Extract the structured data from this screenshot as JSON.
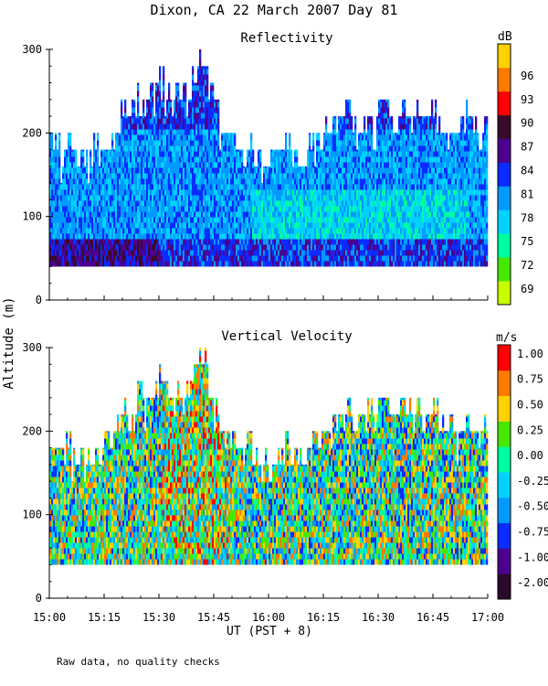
{
  "figure": {
    "title": "Dixon, CA 22 March 2007  Day  81",
    "ylabel": "Altitude (m)",
    "xlabel": "UT  (PST + 8)",
    "footnote": "Raw data, no quality checks"
  },
  "chart_data": [
    {
      "type": "heatmap",
      "title": "Reflectivity",
      "xlabel": "UT  (PST + 8)",
      "ylabel": "Altitude (m)",
      "x_ticks": [
        "15:00",
        "15:15",
        "15:30",
        "15:45",
        "16:00",
        "16:15",
        "16:30",
        "16:45",
        "17:00"
      ],
      "y_ticks": [
        0,
        100,
        200,
        300
      ],
      "xlim": [
        "15:00",
        "17:00"
      ],
      "ylim": [
        0,
        300
      ],
      "colorbar": {
        "unit": "dB",
        "ticks": [
          69,
          72,
          75,
          78,
          81,
          84,
          87,
          90,
          93,
          96
        ],
        "colors": [
          "#c8ff00",
          "#46e800",
          "#00ffa0",
          "#00d2ff",
          "#009aff",
          "#0a2cff",
          "#4b0090",
          "#3a0a2a",
          "#ff0000",
          "#ff7a00",
          "#ffd200"
        ]
      },
      "data_bottom_m": 40,
      "cloud_top_m": [
        200,
        200,
        180,
        200,
        180,
        180,
        180,
        180,
        200,
        180,
        200,
        200,
        220,
        240,
        220,
        240,
        260,
        240,
        260,
        260,
        280,
        260,
        240,
        260,
        260,
        260,
        280,
        300,
        300,
        260,
        240,
        200,
        200,
        200,
        180,
        180,
        200,
        180,
        180,
        180,
        180,
        180,
        180,
        200,
        180,
        180,
        180,
        200,
        200,
        200,
        220,
        220,
        220,
        220,
        240,
        220,
        220,
        220,
        240,
        220,
        240,
        240,
        220,
        220,
        240,
        240,
        220,
        240,
        220,
        240,
        240,
        220,
        200,
        220,
        200,
        220,
        240,
        220,
        200,
        220
      ],
      "dominant_profile_db": [
        {
          "below_m": 70,
          "value": 84
        },
        {
          "below_m": 130,
          "value": 78
        },
        {
          "below_m": 200,
          "value": 80
        },
        {
          "below_m": 300,
          "value": 83
        }
      ],
      "grid": false
    },
    {
      "type": "heatmap",
      "title": "Vertical Velocity",
      "xlabel": "UT  (PST + 8)",
      "ylabel": "Altitude (m)",
      "x_ticks": [
        "15:00",
        "15:15",
        "15:30",
        "15:45",
        "16:00",
        "16:15",
        "16:30",
        "16:45",
        "17:00"
      ],
      "y_ticks": [
        0,
        100,
        200,
        300
      ],
      "xlim": [
        "15:00",
        "17:00"
      ],
      "ylim": [
        0,
        300
      ],
      "colorbar": {
        "unit": "m/s",
        "ticks": [
          "-2.00",
          "-1.00",
          "-0.75",
          "-0.50",
          "-0.25",
          "0.00",
          "0.25",
          "0.50",
          "0.75",
          "1.00"
        ],
        "colors": [
          "#2a0a2a",
          "#4b0090",
          "#0a2cff",
          "#009aff",
          "#00d2ff",
          "#00ffa0",
          "#46e800",
          "#ffd200",
          "#ff7a00",
          "#ff0000"
        ]
      },
      "data_bottom_m": 40,
      "cloud_top_m": [
        200,
        200,
        180,
        200,
        180,
        180,
        180,
        180,
        200,
        180,
        200,
        200,
        220,
        240,
        220,
        240,
        260,
        240,
        260,
        260,
        280,
        260,
        240,
        260,
        260,
        260,
        280,
        300,
        300,
        260,
        240,
        200,
        200,
        200,
        180,
        180,
        200,
        180,
        180,
        180,
        180,
        180,
        180,
        200,
        180,
        180,
        180,
        200,
        200,
        200,
        220,
        220,
        220,
        220,
        240,
        220,
        220,
        220,
        240,
        220,
        240,
        240,
        220,
        220,
        240,
        240,
        220,
        240,
        220,
        240,
        240,
        220,
        200,
        220,
        200,
        220,
        240,
        220,
        200,
        220
      ],
      "grid": false
    }
  ]
}
